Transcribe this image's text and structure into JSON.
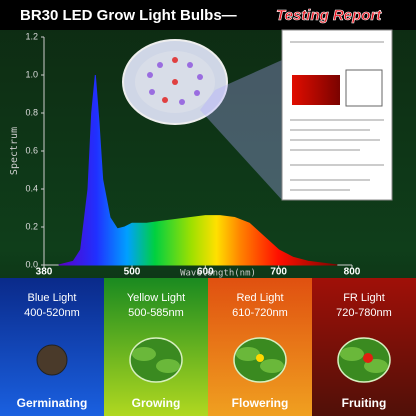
{
  "banner": {
    "title": "BR30 LED Grow Light Bulbs—",
    "highlight": "Testing Report"
  },
  "chart_data": {
    "type": "area",
    "x": [
      400,
      420,
      430,
      440,
      445,
      450,
      455,
      460,
      470,
      480,
      490,
      500,
      520,
      540,
      560,
      580,
      600,
      620,
      640,
      660,
      680,
      700,
      720,
      740,
      760,
      780
    ],
    "values": [
      0,
      0.02,
      0.08,
      0.4,
      0.8,
      1.0,
      0.75,
      0.45,
      0.25,
      0.19,
      0.2,
      0.22,
      0.22,
      0.23,
      0.24,
      0.25,
      0.26,
      0.26,
      0.25,
      0.22,
      0.15,
      0.08,
      0.04,
      0.02,
      0.01,
      0
    ],
    "xlim": [
      380,
      800
    ],
    "ylim": [
      0,
      1.2
    ],
    "xticks": [
      380,
      500,
      600,
      700,
      800
    ],
    "yticks": [
      {
        "value": 0,
        "label": "0.0"
      },
      0.2,
      0.4,
      0.6,
      0.8,
      {
        "value": 1,
        "label": "1.0"
      },
      1.2
    ],
    "xlabel": "Wavelength(nm)",
    "ylabel": "Spectrum"
  },
  "bands": [
    {
      "name": "Blue Light",
      "range": "400-520nm",
      "stage": "Germinating"
    },
    {
      "name": "Yellow Light",
      "range": "500-585nm",
      "stage": "Growing"
    },
    {
      "name": "Red Light",
      "range": "610-720nm",
      "stage": "Flowering"
    },
    {
      "name": "FR Light",
      "range": "720-780nm",
      "stage": "Fruiting"
    }
  ]
}
